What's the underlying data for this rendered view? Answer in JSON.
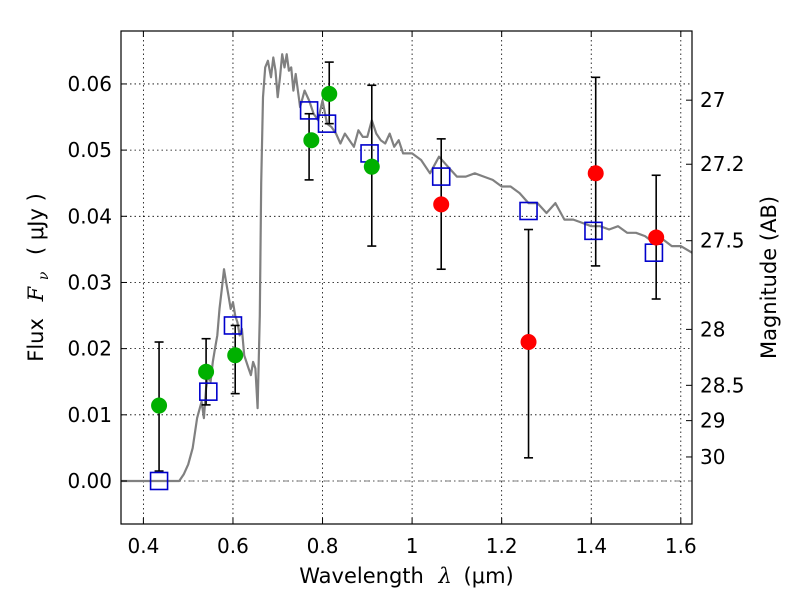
{
  "chart_data": {
    "type": "scatter",
    "xlabel": "Wavelength",
    "xlabel_symbol": "λ",
    "xlabel_unit": "(μm)",
    "ylabel": "Flux",
    "ylabel_symbol": "F",
    "ylabel_subscript": "ν",
    "ylabel_unit": "( μJy )",
    "y2label": "Magnitude (AB)",
    "xlim": [
      0.35,
      1.625
    ],
    "ylim": [
      -0.0065,
      0.068
    ],
    "grid": true,
    "x_ticks": [
      0.4,
      0.6,
      0.8,
      1.0,
      1.2,
      1.4,
      1.6
    ],
    "x_tick_labels": [
      "0.4",
      "0.6",
      "0.8",
      "1",
      "1.2",
      "1.4",
      "1.6"
    ],
    "y_ticks": [
      0.0,
      0.01,
      0.02,
      0.03,
      0.04,
      0.05,
      0.06
    ],
    "y_tick_labels": [
      "0.00",
      "0.01",
      "0.02",
      "0.03",
      "0.04",
      "0.05",
      "0.06"
    ],
    "magnitude_ticks": [
      27,
      27.2,
      27.5,
      28,
      28.5,
      29,
      30
    ],
    "magnitude_tick_labels": [
      "27",
      "27.2",
      "27.5",
      "28",
      "28.5",
      "29",
      "30"
    ],
    "series": [
      {
        "name": "model spectrum",
        "kind": "line",
        "color": "#808080",
        "x": [
          0.35,
          0.4,
          0.45,
          0.48,
          0.49,
          0.5,
          0.51,
          0.52,
          0.53,
          0.535,
          0.54,
          0.545,
          0.55,
          0.555,
          0.56,
          0.565,
          0.57,
          0.575,
          0.58,
          0.585,
          0.59,
          0.595,
          0.6,
          0.605,
          0.61,
          0.615,
          0.62,
          0.625,
          0.63,
          0.635,
          0.64,
          0.645,
          0.65,
          0.655,
          0.66,
          0.663,
          0.667,
          0.672,
          0.678,
          0.685,
          0.69,
          0.695,
          0.7,
          0.705,
          0.71,
          0.715,
          0.72,
          0.725,
          0.73,
          0.735,
          0.74,
          0.745,
          0.75,
          0.76,
          0.77,
          0.78,
          0.79,
          0.8,
          0.81,
          0.82,
          0.83,
          0.84,
          0.85,
          0.86,
          0.87,
          0.88,
          0.89,
          0.9,
          0.91,
          0.92,
          0.93,
          0.94,
          0.95,
          0.96,
          0.97,
          0.98,
          0.99,
          1.0,
          1.02,
          1.04,
          1.06,
          1.08,
          1.1,
          1.12,
          1.14,
          1.16,
          1.18,
          1.2,
          1.22,
          1.24,
          1.26,
          1.28,
          1.3,
          1.32,
          1.34,
          1.36,
          1.38,
          1.4,
          1.42,
          1.44,
          1.46,
          1.48,
          1.5,
          1.52,
          1.54,
          1.56,
          1.58,
          1.6,
          1.625
        ],
        "y": [
          0.0,
          0.0,
          0.0,
          0.0,
          0.001,
          0.0025,
          0.005,
          0.0095,
          0.012,
          0.0095,
          0.014,
          0.016,
          0.015,
          0.018,
          0.02,
          0.022,
          0.026,
          0.029,
          0.032,
          0.03,
          0.028,
          0.026,
          0.027,
          0.025,
          0.024,
          0.022,
          0.023,
          0.019,
          0.018,
          0.017,
          0.016,
          0.018,
          0.017,
          0.011,
          0.025,
          0.045,
          0.058,
          0.0625,
          0.0635,
          0.061,
          0.064,
          0.062,
          0.058,
          0.061,
          0.0645,
          0.0625,
          0.0645,
          0.062,
          0.0625,
          0.059,
          0.0615,
          0.059,
          0.0565,
          0.059,
          0.0575,
          0.0555,
          0.0545,
          0.0575,
          0.054,
          0.0535,
          0.0525,
          0.051,
          0.0525,
          0.0515,
          0.0505,
          0.053,
          0.052,
          0.052,
          0.0545,
          0.0525,
          0.0515,
          0.051,
          0.0525,
          0.0505,
          0.0515,
          0.0495,
          0.0495,
          0.0495,
          0.0485,
          0.0465,
          0.049,
          0.0475,
          0.046,
          0.046,
          0.0465,
          0.046,
          0.0455,
          0.0445,
          0.0445,
          0.0435,
          0.042,
          0.042,
          0.0405,
          0.042,
          0.0395,
          0.0395,
          0.039,
          0.0385,
          0.0385,
          0.038,
          0.0385,
          0.0375,
          0.0375,
          0.037,
          0.036,
          0.0365,
          0.0355,
          0.0355,
          0.0345
        ]
      },
      {
        "name": "green photometry",
        "kind": "points",
        "color": "#00b000",
        "x": [
          0.435,
          0.54,
          0.605,
          0.775,
          0.815,
          0.91
        ],
        "y": [
          0.0114,
          0.0165,
          0.019,
          0.0515,
          0.0585,
          0.0475
        ]
      },
      {
        "name": "red photometry",
        "kind": "points",
        "color": "#ff0000",
        "x": [
          1.065,
          1.26,
          1.41,
          1.545
        ],
        "y": [
          0.0418,
          0.021,
          0.0465,
          0.0368
        ]
      },
      {
        "name": "model band fluxes",
        "kind": "squares",
        "color": "#0000cc",
        "x": [
          0.435,
          0.545,
          0.6,
          0.77,
          0.81,
          0.905,
          1.065,
          1.26,
          1.405,
          1.54
        ],
        "y": [
          0.0,
          0.0135,
          0.0235,
          0.056,
          0.054,
          0.0495,
          0.046,
          0.0408,
          0.0378,
          0.0345
        ]
      }
    ],
    "error_bars": [
      {
        "x": 0.435,
        "low": 0.0015,
        "high": 0.021
      },
      {
        "x": 0.54,
        "low": 0.0115,
        "high": 0.0215
      },
      {
        "x": 0.605,
        "low": 0.0132,
        "high": 0.0235
      },
      {
        "x": 0.77,
        "low": 0.0455,
        "high": 0.0555
      },
      {
        "x": 0.815,
        "low": 0.054,
        "high": 0.0633
      },
      {
        "x": 0.91,
        "low": 0.0355,
        "high": 0.0598
      },
      {
        "x": 1.065,
        "low": 0.032,
        "high": 0.0517
      },
      {
        "x": 1.26,
        "low": 0.0035,
        "high": 0.038
      },
      {
        "x": 1.41,
        "low": 0.0325,
        "high": 0.061
      },
      {
        "x": 1.545,
        "low": 0.0275,
        "high": 0.0462
      }
    ]
  }
}
